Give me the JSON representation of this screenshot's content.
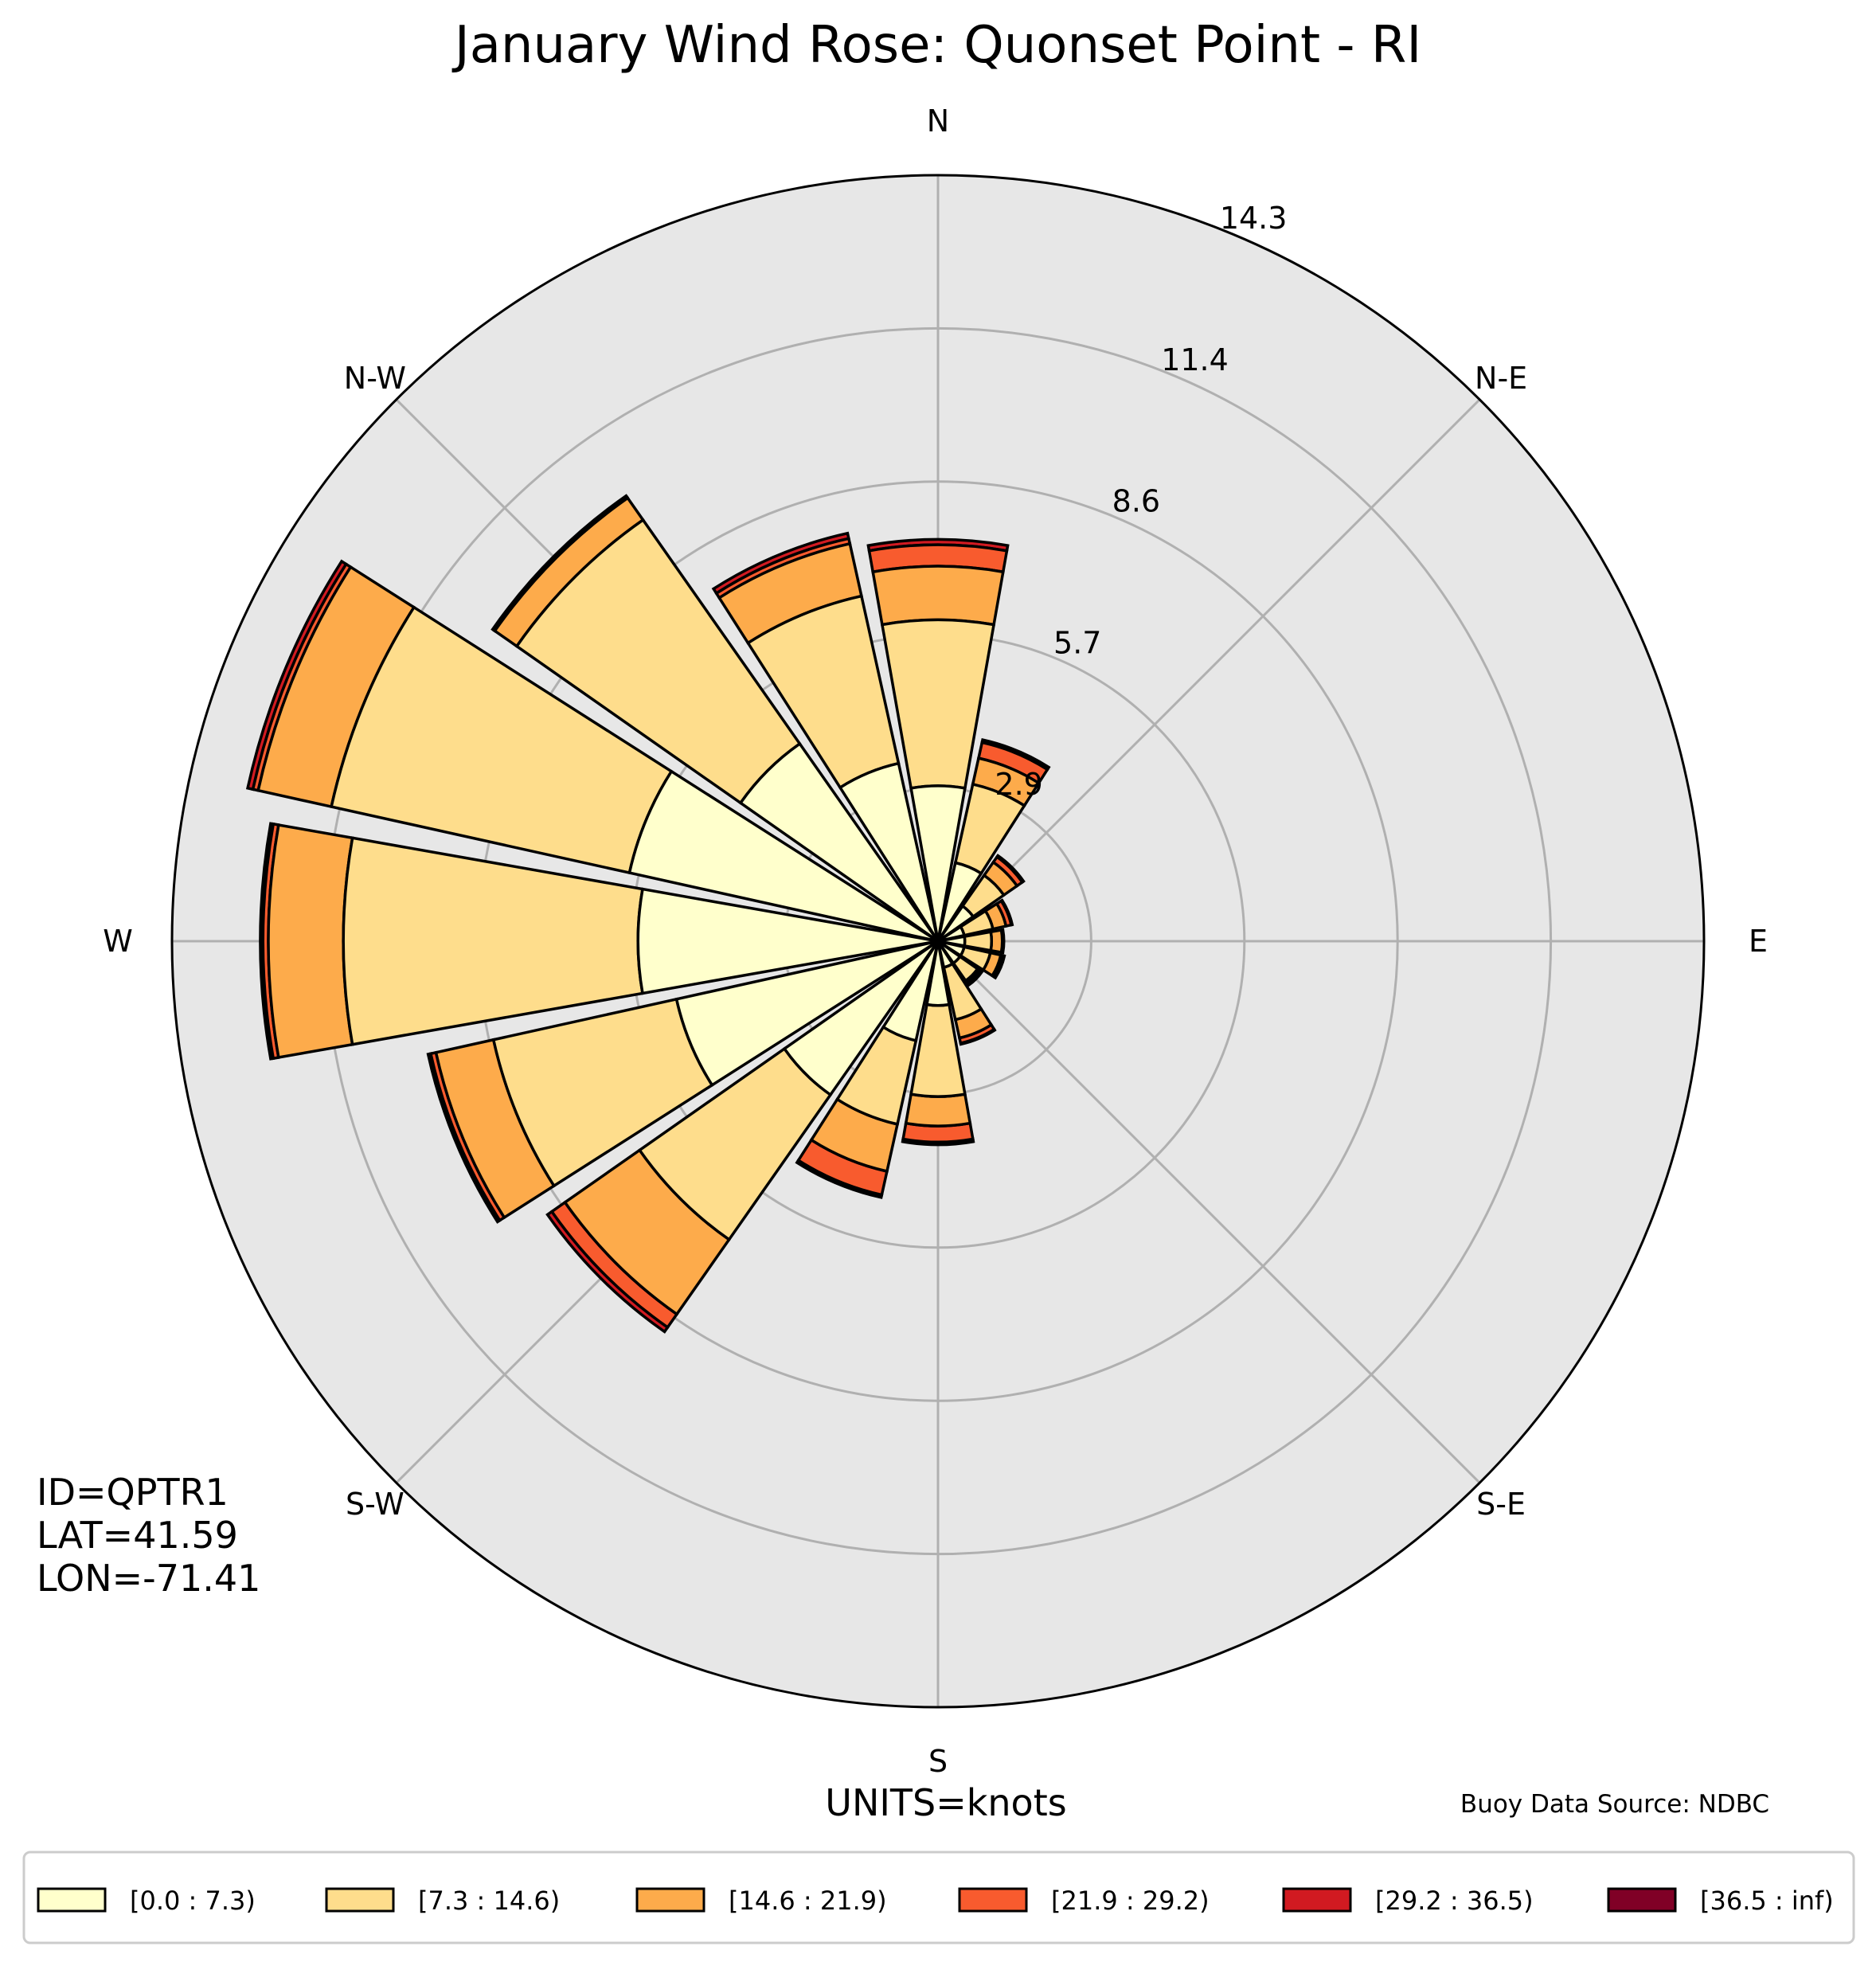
{
  "chart_data": {
    "type": "windrose",
    "title": "January Wind Rose: Quonset Point - RI",
    "direction_labels": [
      "N",
      "N-E",
      "E",
      "S-E",
      "S",
      "S-W",
      "W",
      "N-W"
    ],
    "radial_ticks": [
      "2.9",
      "5.7",
      "8.6",
      "11.4",
      "14.3"
    ],
    "radial_tick_values": [
      2.86,
      5.72,
      8.58,
      11.44,
      14.3
    ],
    "rmax": 14.3,
    "units_label": "UNITS=knots",
    "station_info": [
      "ID=QPTR1",
      "LAT=41.59",
      "LON=-71.41"
    ],
    "source_label": "Buoy Data Source: NDBC",
    "legend_placement": "bottom",
    "speed_bins": [
      {
        "label": "[0.0 : 7.3)",
        "color": "#ffffcc"
      },
      {
        "label": "[7.3 : 14.6)",
        "color": "#fedd8c"
      },
      {
        "label": "[14.6 : 21.9)",
        "color": "#fdab4b"
      },
      {
        "label": "[21.9 : 29.2)",
        "color": "#f85b2e"
      },
      {
        "label": "[29.2 : 36.5)",
        "color": "#d11a21"
      },
      {
        "label": "[36.5 : inf)",
        "color": "#800026"
      }
    ],
    "sectors": [
      {
        "direction_deg": 0.0,
        "stack": [
          2.9,
          6.0,
          7.0,
          7.4,
          7.5,
          7.5
        ]
      },
      {
        "direction_deg": 22.5,
        "stack": [
          1.5,
          3.0,
          3.5,
          3.8,
          3.85,
          3.85
        ]
      },
      {
        "direction_deg": 45.0,
        "stack": [
          0.8,
          1.5,
          1.8,
          1.92,
          1.95,
          1.95
        ]
      },
      {
        "direction_deg": 67.5,
        "stack": [
          0.5,
          1.05,
          1.3,
          1.4,
          1.42,
          1.42
        ]
      },
      {
        "direction_deg": 90.0,
        "stack": [
          0.5,
          1.0,
          1.2,
          1.22,
          1.23,
          1.23
        ]
      },
      {
        "direction_deg": 112.5,
        "stack": [
          0.5,
          1.0,
          1.2,
          1.25,
          1.27,
          1.27
        ]
      },
      {
        "direction_deg": 135.0,
        "stack": [
          0.5,
          0.9,
          0.95,
          0.98,
          1.0,
          1.0
        ]
      },
      {
        "direction_deg": 157.5,
        "stack": [
          0.5,
          1.5,
          1.85,
          1.95,
          1.97,
          1.97
        ]
      },
      {
        "direction_deg": 180.0,
        "stack": [
          1.2,
          2.9,
          3.45,
          3.75,
          3.8,
          3.8
        ]
      },
      {
        "direction_deg": 202.5,
        "stack": [
          1.9,
          3.5,
          4.4,
          4.85,
          4.9,
          4.9
        ]
      },
      {
        "direction_deg": 225.0,
        "stack": [
          3.5,
          6.8,
          8.5,
          8.8,
          8.9,
          8.9
        ]
      },
      {
        "direction_deg": 247.5,
        "stack": [
          5.0,
          8.5,
          9.6,
          9.7,
          9.75,
          9.75
        ]
      },
      {
        "direction_deg": 270.0,
        "stack": [
          5.6,
          11.1,
          12.5,
          12.6,
          12.65,
          12.65
        ]
      },
      {
        "direction_deg": 292.5,
        "stack": [
          5.9,
          11.6,
          13.0,
          13.1,
          13.2,
          13.2
        ]
      },
      {
        "direction_deg": 315.0,
        "stack": [
          4.5,
          9.6,
          10.1,
          10.12,
          10.15,
          10.15
        ]
      },
      {
        "direction_deg": 337.5,
        "stack": [
          3.4,
          6.6,
          7.6,
          7.7,
          7.8,
          7.8
        ]
      }
    ]
  }
}
